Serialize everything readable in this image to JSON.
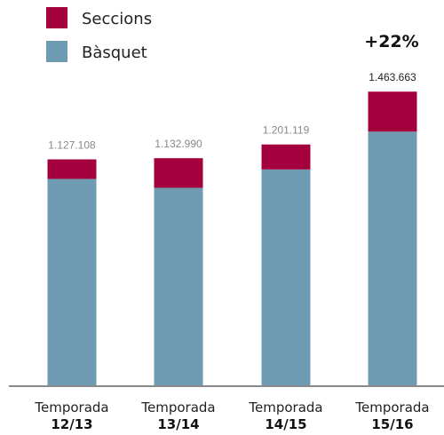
{
  "colors": {
    "seccions": "#A5003E",
    "basquet": "#6F9BB2",
    "axis": "#8A8A8A"
  },
  "legend": [
    {
      "label": "Seccions",
      "color": "#A5003E"
    },
    {
      "label": "Bàsquet",
      "color": "#6F9BB2"
    }
  ],
  "growth_label": "+22%",
  "chart_data": {
    "type": "bar",
    "stacked": true,
    "categories": [
      {
        "line1": "Temporada",
        "line2": "12/13"
      },
      {
        "line1": "Temporada",
        "line2": "13/14"
      },
      {
        "line1": "Temporada",
        "line2": "14/15"
      },
      {
        "line1": "Temporada",
        "line2": "15/16"
      }
    ],
    "totals": [
      1127108,
      1132990,
      1201119,
      1463663
    ],
    "total_labels": [
      "1.127.108",
      "1.132.990",
      "1.201.119",
      "1.463.663"
    ],
    "series": [
      {
        "name": "Bàsquet",
        "values": [
          1030000,
          986000,
          1077000,
          1265000
        ]
      },
      {
        "name": "Seccions",
        "values": [
          97108,
          146990,
          124119,
          198663
        ]
      }
    ],
    "ylim": [
      0,
      1500000
    ],
    "grid": false,
    "legend_position": "top-left"
  }
}
